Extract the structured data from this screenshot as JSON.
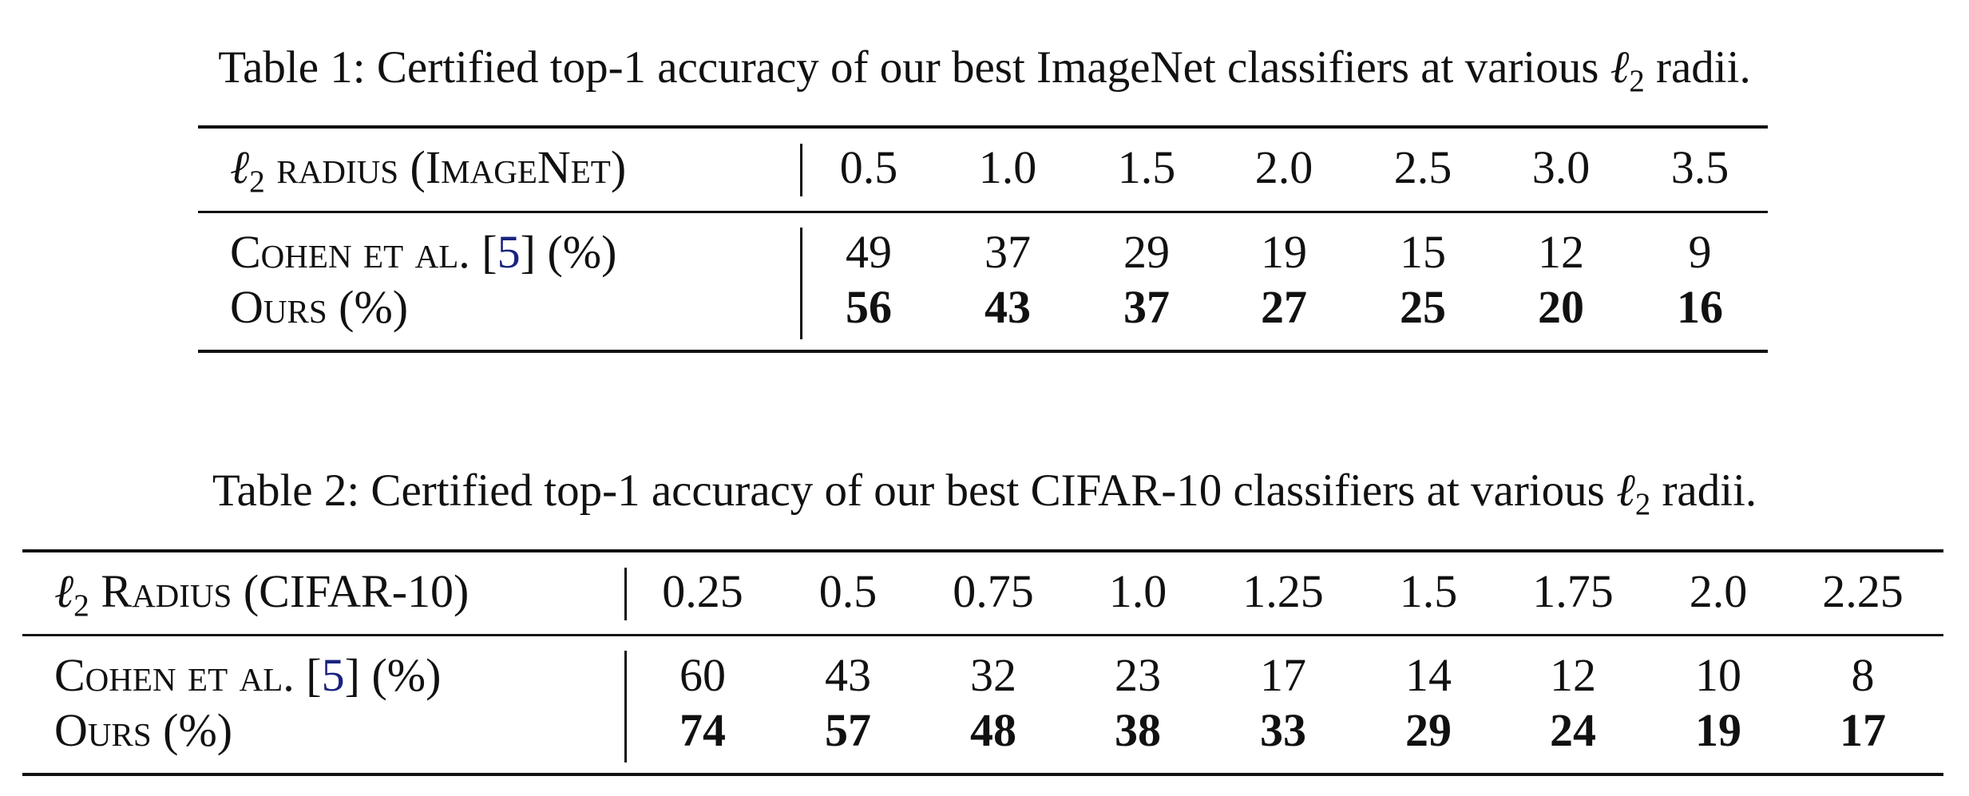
{
  "tables": [
    {
      "caption_prefix": "Table 1: Certified top-1 accuracy of our best ImageNet classifiers at various ",
      "caption_symbol": "ℓ",
      "caption_sub": "2",
      "caption_suffix": " radii.",
      "header_symbol": "ℓ",
      "header_sub": "2",
      "header_label": " radius (ImageNet)",
      "radii": [
        "0.5",
        "1.0",
        "1.5",
        "2.0",
        "2.5",
        "3.0",
        "3.5"
      ],
      "rows": [
        {
          "label_prefix": "Cohen et al. [",
          "cite": "5",
          "label_suffix": "] (%)",
          "bold": false,
          "values": [
            "49",
            "37",
            "29",
            "19",
            "15",
            "12",
            "9"
          ]
        },
        {
          "label_prefix": "Ours (%)",
          "cite": "",
          "label_suffix": "",
          "bold": true,
          "values": [
            "56",
            "43",
            "37",
            "27",
            "25",
            "20",
            "16"
          ]
        }
      ]
    },
    {
      "caption_prefix": "Table 2: Certified top-1 accuracy of our best CIFAR-10 classifiers at various ",
      "caption_symbol": "ℓ",
      "caption_sub": "2",
      "caption_suffix": " radii.",
      "header_symbol": "ℓ",
      "header_sub": "2",
      "header_label": " Radius (CIFAR-10)",
      "radii": [
        "0.25",
        "0.5",
        "0.75",
        "1.0",
        "1.25",
        "1.5",
        "1.75",
        "2.0",
        "2.25"
      ],
      "rows": [
        {
          "label_prefix": "Cohen et al. [",
          "cite": "5",
          "label_suffix": "] (%)",
          "bold": false,
          "values": [
            "60",
            "43",
            "32",
            "23",
            "17",
            "14",
            "12",
            "10",
            "8"
          ]
        },
        {
          "label_prefix": "Ours (%)",
          "cite": "",
          "label_suffix": "",
          "bold": true,
          "values": [
            "74",
            "57",
            "48",
            "38",
            "33",
            "29",
            "24",
            "19",
            "17"
          ]
        }
      ]
    }
  ]
}
